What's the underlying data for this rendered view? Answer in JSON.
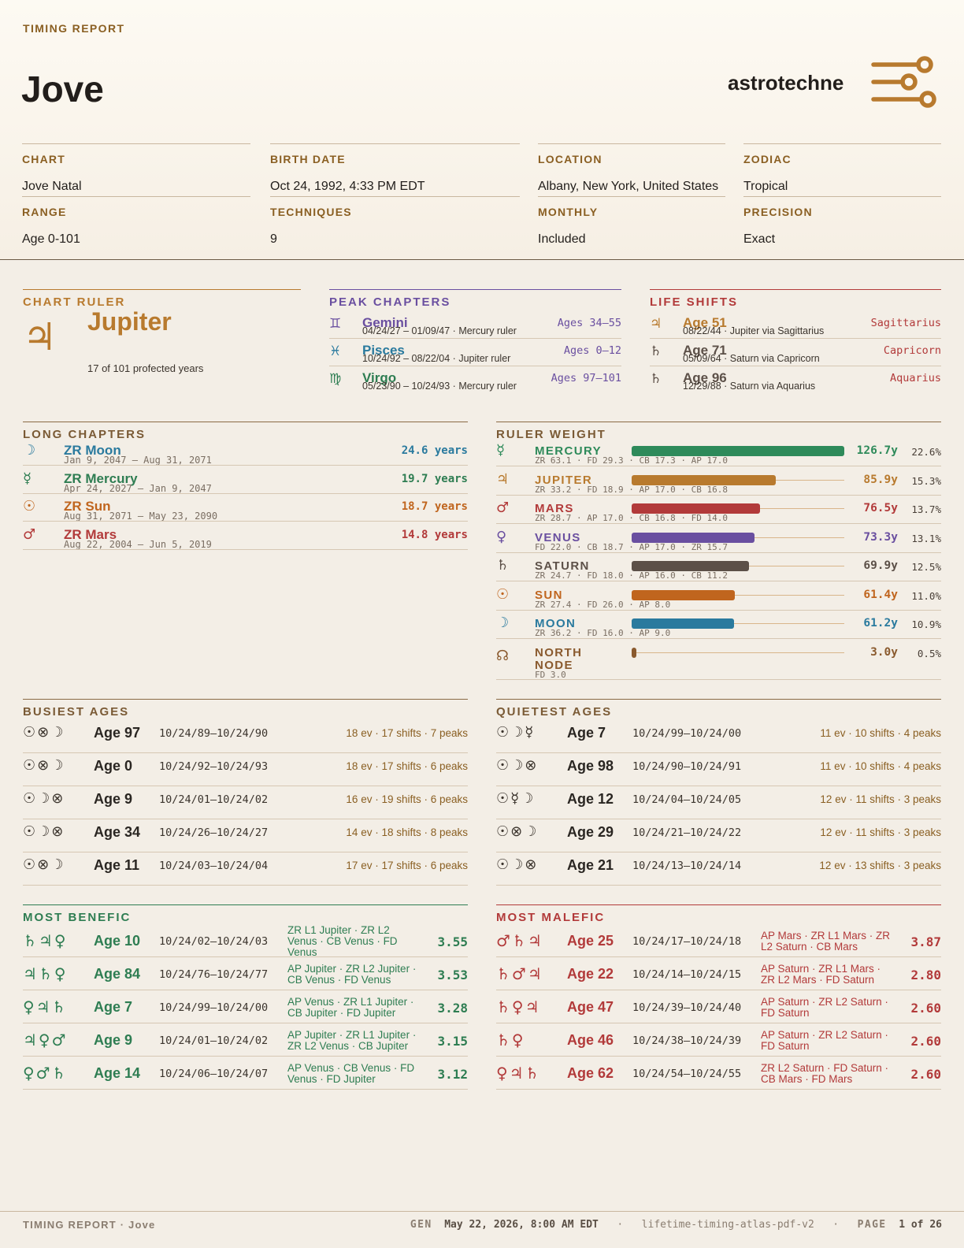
{
  "header": {
    "kicker": "TIMING REPORT",
    "person": "Jove",
    "brand": "astrotechne",
    "logo_icon": "sliders-logo-icon",
    "accent": "#b87a2e"
  },
  "meta": [
    {
      "label": "CHART",
      "value": "Jove Natal"
    },
    {
      "label": "BIRTH DATE",
      "value": "Oct 24, 1992, 4:33 PM EDT"
    },
    {
      "label": "LOCATION",
      "value": "Albany, New York, United States"
    },
    {
      "label": "ZODIAC",
      "value": "Tropical"
    },
    {
      "label": "RANGE",
      "value": "Age 0-101"
    },
    {
      "label": "TECHNIQUES",
      "value": "9"
    },
    {
      "label": "MONTHLY",
      "value": "Included"
    },
    {
      "label": "PRECISION",
      "value": "Exact"
    }
  ],
  "chart_ruler": {
    "title": "CHART RULER",
    "glyph": "♃",
    "name": "Jupiter",
    "subtitle": "17 of 101 profected years"
  },
  "peak_chapters": {
    "title": "PEAK CHAPTERS",
    "color": "#6a4fa0",
    "items": [
      {
        "glyph": "♊",
        "name": "Gemini",
        "sub": "04/24/27 – 01/09/47 · Mercury ruler",
        "right": "Ages 34–55",
        "color": "#6a4fa0"
      },
      {
        "glyph": "♓",
        "name": "Pisces",
        "sub": "10/24/92 – 08/22/04 · Jupiter ruler",
        "right": "Ages 0–12",
        "color": "#2a7a9e"
      },
      {
        "glyph": "♍",
        "name": "Virgo",
        "sub": "05/23/90 – 10/24/93 · Mercury ruler",
        "right": "Ages 97–101",
        "color": "#2e7d52"
      }
    ]
  },
  "life_shifts": {
    "title": "LIFE SHIFTS",
    "color": "#b23a3a",
    "items": [
      {
        "glyph": "♃",
        "name": "Age 51",
        "sub": "08/22/44 · Jupiter via Sagittarius",
        "right": "Sagittarius",
        "color": "#b87a2e"
      },
      {
        "glyph": "♄",
        "name": "Age 71",
        "sub": "05/09/64 · Saturn via Capricorn",
        "right": "Capricorn",
        "color": "#5c5048"
      },
      {
        "glyph": "♄",
        "name": "Age 96",
        "sub": "12/29/88 · Saturn via Aquarius",
        "right": "Aquarius",
        "color": "#5c5048"
      }
    ]
  },
  "long_chapters": {
    "title": "LONG CHAPTERS",
    "items": [
      {
        "glyph": "☽",
        "name": "ZR Moon",
        "sub": "Jan 9, 2047 – Aug 31, 2071",
        "right": "24.6 years",
        "color": "#2a7a9e"
      },
      {
        "glyph": "☿",
        "name": "ZR Mercury",
        "sub": "Apr 24, 2027 – Jan 9, 2047",
        "right": "19.7 years",
        "color": "#2e7d52"
      },
      {
        "glyph": "☉",
        "name": "ZR Sun",
        "sub": "Aug 31, 2071 – May 23, 2090",
        "right": "18.7 years",
        "color": "#c0651e"
      },
      {
        "glyph": "♂",
        "name": "ZR Mars",
        "sub": "Aug 22, 2004 – Jun 5, 2019",
        "right": "14.8 years",
        "color": "#b23a3a"
      }
    ]
  },
  "ruler_weight": {
    "title": "RULER WEIGHT",
    "items": [
      {
        "glyph": "☿",
        "name": "MERCURY",
        "sub": "ZR 63.1  ·  FD 29.3  ·  CB 17.3  ·  AP 17.0",
        "years": 126.7,
        "value": "126.7y",
        "pct": "22.6%",
        "color": "#2e8a5a"
      },
      {
        "glyph": "♃",
        "name": "JUPITER",
        "sub": "ZR 33.2  ·  FD 18.9  ·  AP 17.0  ·  CB 16.8",
        "years": 85.9,
        "value": "85.9y",
        "pct": "15.3%",
        "color": "#b87a2e"
      },
      {
        "glyph": "♂",
        "name": "MARS",
        "sub": "ZR 28.7  ·  AP 17.0  ·  CB 16.8  ·  FD 14.0",
        "years": 76.5,
        "value": "76.5y",
        "pct": "13.7%",
        "color": "#b23a3a"
      },
      {
        "glyph": "♀",
        "name": "VENUS",
        "sub": "FD 22.0  ·  CB 18.7  ·  AP 17.0  ·  ZR 15.7",
        "years": 73.3,
        "value": "73.3y",
        "pct": "13.1%",
        "color": "#6a4fa0"
      },
      {
        "glyph": "♄",
        "name": "SATURN",
        "sub": "ZR 24.7  ·  FD 18.0  ·  AP 16.0  ·  CB 11.2",
        "years": 69.9,
        "value": "69.9y",
        "pct": "12.5%",
        "color": "#5c5048"
      },
      {
        "glyph": "☉",
        "name": "SUN",
        "sub": "ZR 27.4  ·  FD 26.0  ·  AP 8.0",
        "years": 61.4,
        "value": "61.4y",
        "pct": "11.0%",
        "color": "#c0651e"
      },
      {
        "glyph": "☽",
        "name": "MOON",
        "sub": "ZR 36.2  ·  FD 16.0  ·  AP 9.0",
        "years": 61.2,
        "value": "61.2y",
        "pct": "10.9%",
        "color": "#2a7a9e"
      },
      {
        "glyph": "☊",
        "name": "NORTH NODE",
        "sub": "FD 3.0",
        "years": 3.0,
        "value": "3.0y",
        "pct": "0.5%",
        "color": "#8a5a2e"
      }
    ]
  },
  "busiest_ages": {
    "title": "BUSIEST AGES",
    "items": [
      {
        "glyphs": "☉⊗☽",
        "age": "Age 97",
        "dates": "10/24/89–10/24/90",
        "stats": "18 ev · 17 shifts · 7 peaks"
      },
      {
        "glyphs": "☉⊗☽",
        "age": "Age 0",
        "dates": "10/24/92–10/24/93",
        "stats": "18 ev · 17 shifts · 6 peaks"
      },
      {
        "glyphs": "☉☽⊗",
        "age": "Age 9",
        "dates": "10/24/01–10/24/02",
        "stats": "16 ev · 19 shifts · 6 peaks"
      },
      {
        "glyphs": "☉☽⊗",
        "age": "Age 34",
        "dates": "10/24/26–10/24/27",
        "stats": "14 ev · 18 shifts · 8 peaks"
      },
      {
        "glyphs": "☉⊗☽",
        "age": "Age 11",
        "dates": "10/24/03–10/24/04",
        "stats": "17 ev · 17 shifts · 6 peaks"
      }
    ]
  },
  "quietest_ages": {
    "title": "QUIETEST AGES",
    "items": [
      {
        "glyphs": "☉☽☿",
        "age": "Age 7",
        "dates": "10/24/99–10/24/00",
        "stats": "11 ev · 10 shifts · 4 peaks"
      },
      {
        "glyphs": "☉☽⊗",
        "age": "Age 98",
        "dates": "10/24/90–10/24/91",
        "stats": "11 ev · 10 shifts · 4 peaks"
      },
      {
        "glyphs": "☉☿☽",
        "age": "Age 12",
        "dates": "10/24/04–10/24/05",
        "stats": "12 ev · 11 shifts · 3 peaks"
      },
      {
        "glyphs": "☉⊗☽",
        "age": "Age 29",
        "dates": "10/24/21–10/24/22",
        "stats": "12 ev · 11 shifts · 3 peaks"
      },
      {
        "glyphs": "☉☽⊗",
        "age": "Age 21",
        "dates": "10/24/13–10/24/14",
        "stats": "12 ev · 13 shifts · 3 peaks"
      }
    ]
  },
  "most_benefic": {
    "title": "MOST BENEFIC",
    "color": "#2e7d52",
    "items": [
      {
        "glyphs": "♄♃♀",
        "age": "Age 10",
        "dates": "10/24/02–10/24/03",
        "desc": "ZR L1 Jupiter · ZR L2 Venus · CB Venus · FD Venus",
        "score": "3.55"
      },
      {
        "glyphs": "♃♄♀",
        "age": "Age 84",
        "dates": "10/24/76–10/24/77",
        "desc": "AP Jupiter · ZR L2 Jupiter · CB Venus · FD Venus",
        "score": "3.53"
      },
      {
        "glyphs": "♀♃♄",
        "age": "Age 7",
        "dates": "10/24/99–10/24/00",
        "desc": "AP Venus · ZR L1 Jupiter · CB Jupiter · FD Jupiter",
        "score": "3.28"
      },
      {
        "glyphs": "♃♀♂",
        "age": "Age 9",
        "dates": "10/24/01–10/24/02",
        "desc": "AP Jupiter · ZR L1 Jupiter · ZR L2 Venus · CB Jupiter",
        "score": "3.15"
      },
      {
        "glyphs": "♀♂♄",
        "age": "Age 14",
        "dates": "10/24/06–10/24/07",
        "desc": "AP Venus · CB Venus · FD Venus · FD Jupiter",
        "score": "3.12"
      }
    ]
  },
  "most_malefic": {
    "title": "MOST MALEFIC",
    "color": "#b23a3a",
    "items": [
      {
        "glyphs": "♂♄♃",
        "age": "Age 25",
        "dates": "10/24/17–10/24/18",
        "desc": "AP Mars · ZR L1 Mars · ZR L2 Saturn · CB Mars",
        "score": "3.87"
      },
      {
        "glyphs": "♄♂♃",
        "age": "Age 22",
        "dates": "10/24/14–10/24/15",
        "desc": "AP Saturn · ZR L1 Mars · ZR L2 Mars · FD Saturn",
        "score": "2.80"
      },
      {
        "glyphs": "♄♀♃",
        "age": "Age 47",
        "dates": "10/24/39–10/24/40",
        "desc": "AP Saturn · ZR L2 Saturn · FD Saturn",
        "score": "2.60"
      },
      {
        "glyphs": "♄♀",
        "age": "Age 46",
        "dates": "10/24/38–10/24/39",
        "desc": "AP Saturn · ZR L2 Saturn · FD Saturn",
        "score": "2.60"
      },
      {
        "glyphs": "♀♃♄",
        "age": "Age 62",
        "dates": "10/24/54–10/24/55",
        "desc": "ZR L2 Saturn · FD Saturn · CB Mars · FD Mars",
        "score": "2.60"
      }
    ]
  },
  "footer": {
    "left": "TIMING REPORT · Jove",
    "gen_label": "GEN",
    "gen_value": "May 22, 2026, 8:00 AM EDT",
    "template": "lifetime-timing-atlas-pdf-v2",
    "page_label": "PAGE",
    "page_value": "1 of 26"
  }
}
